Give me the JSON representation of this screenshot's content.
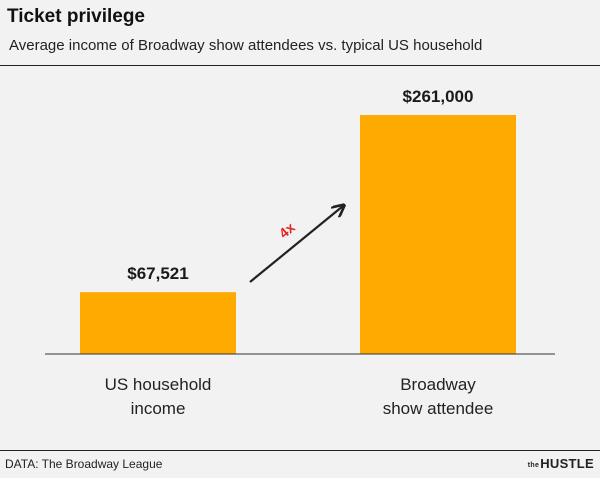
{
  "title": "Ticket privilege",
  "subtitle": "Average income of Broadway show attendees vs. typical US household",
  "source": "DATA: The Broadway League",
  "brand": {
    "prefix": "the",
    "name": "HUSTLE"
  },
  "colors": {
    "bar": "#FFAA00",
    "annotation": "#e0261f",
    "arrow": "#222222",
    "background": "#f2f2f2"
  },
  "chart_data": {
    "type": "bar",
    "categories": [
      [
        "US household",
        "income"
      ],
      [
        "Broadway",
        "show attendee"
      ]
    ],
    "values": [
      67521,
      261000
    ],
    "value_labels": [
      "$67,521",
      "$261,000"
    ],
    "ylim": [
      0,
      261000
    ],
    "grid": false,
    "annotation": {
      "text": "4x",
      "arrow": "from first bar to second bar"
    }
  }
}
